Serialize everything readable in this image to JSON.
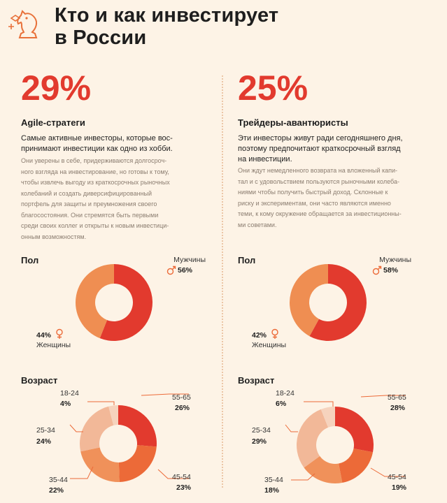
{
  "header": {
    "title_line1": "Кто и как инвестирует",
    "title_line2": "в России"
  },
  "legend_icons": {
    "male": "male-symbol-icon",
    "female": "female-symbol-icon"
  },
  "colors": {
    "red": "#e23a2e",
    "orange": "#ec6a38",
    "light_orange": "#f0915a",
    "peach": "#f2b898",
    "pale": "#f6d3bd",
    "women": "#ef8e52",
    "accent_text": "#e23a2e"
  },
  "segments": [
    {
      "percent": "29%",
      "title": "Agile-стратеги",
      "desc_main": [
        "Самые активные инвесторы, которые вос-",
        "принимают инвестиции как одно из хобби."
      ],
      "desc_sub": [
        "Они уверены в себе, придерживаются долгосроч-",
        "ного взгляда на инвестирование, но готовы к тому,",
        "чтобы извлечь выгоду из краткосрочных рыночных",
        "колебаний и создать диверсифицированный",
        "портфель для защиты и преумножения своего",
        "благосостояния.  Они стремятся быть первыми",
        "среди своих коллег и открыты к  новым инвестици-",
        "онным возможностям."
      ],
      "gender_heading": "Пол",
      "men_label": "Мужчины",
      "men_value": "56%",
      "women_label": "Женщины",
      "women_value": "44%",
      "age_heading": "Возраст",
      "ages": [
        {
          "label": "18-24",
          "value": "4%"
        },
        {
          "label": "25-34",
          "value": "24%"
        },
        {
          "label": "35-44",
          "value": "22%"
        },
        {
          "label": "45-54",
          "value": "23%"
        },
        {
          "label": "55-65",
          "value": "26%"
        }
      ]
    },
    {
      "percent": "25%",
      "title": "Трейдеры-авантюристы",
      "desc_main": [
        "Эти инвесторы живут ради сегодняшнего дня,",
        "поэтому предпочитают краткосрочный взгляд",
        "на инвестиции."
      ],
      "desc_sub": [
        "Они ждут немедленного возврата на вложенный капи-",
        "тал и с удовольствием пользуются рыночными колеба-",
        "ниями чтобы получить быстрый доход. Склонные к",
        "риску и экспериментам, они часто являются именно",
        "теми, к кому окружение обращается за инвестиционны-",
        "ми советами."
      ],
      "gender_heading": "Пол",
      "men_label": "Мужчины",
      "men_value": "58%",
      "women_label": "Женщины",
      "women_value": "42%",
      "age_heading": "Возраст",
      "ages": [
        {
          "label": "18-24",
          "value": "6%"
        },
        {
          "label": "25-34",
          "value": "29%"
        },
        {
          "label": "35-44",
          "value": "18%"
        },
        {
          "label": "45-54",
          "value": "19%"
        },
        {
          "label": "55-65",
          "value": "28%"
        }
      ]
    }
  ],
  "chart_data": [
    {
      "type": "pie",
      "categories": [
        "Мужчины",
        "Женщины"
      ],
      "values": [
        56,
        44
      ]
    },
    {
      "type": "pie",
      "categories": [
        "18-24",
        "25-34",
        "35-44",
        "45-54",
        "55-65"
      ],
      "values": [
        4,
        24,
        22,
        23,
        26
      ]
    },
    {
      "type": "pie",
      "categories": [
        "Мужчины",
        "Женщины"
      ],
      "values": [
        58,
        42
      ]
    },
    {
      "type": "pie",
      "categories": [
        "18-24",
        "25-34",
        "35-44",
        "45-54",
        "55-65"
      ],
      "values": [
        6,
        29,
        18,
        19,
        28
      ]
    }
  ]
}
